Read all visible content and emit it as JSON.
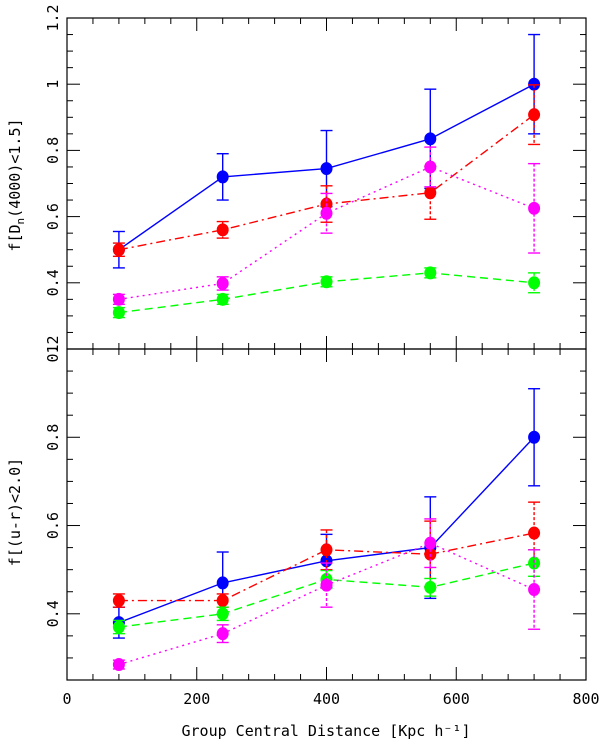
{
  "chart_data": [
    {
      "type": "line",
      "panel": "top",
      "ylabel_main": "f[D",
      "ylabel_sub": "n",
      "ylabel_rest": "(4000)<1.5]",
      "xlim": [
        0,
        800
      ],
      "ylim": [
        0.2,
        1.2
      ],
      "ytick_labels": [
        "0.2",
        "0.4",
        "0.6",
        "0.8",
        "1",
        "1.2"
      ],
      "ytick_values": [
        0.2,
        0.4,
        0.6,
        0.8,
        1.0,
        1.2
      ],
      "x": [
        80,
        240,
        400,
        560,
        720
      ],
      "series": [
        {
          "name": "blue",
          "color": "#0000ff",
          "dash": "solid",
          "values": [
            0.5,
            0.72,
            0.745,
            0.835,
            1.0
          ],
          "err": [
            0.055,
            0.07,
            0.115,
            0.15,
            0.15
          ]
        },
        {
          "name": "red",
          "color": "#ff0000",
          "dash": "dashdot",
          "values": [
            0.5,
            0.56,
            0.638,
            0.672,
            0.908
          ],
          "err": [
            0.02,
            0.025,
            0.055,
            0.08,
            0.09
          ]
        },
        {
          "name": "magenta",
          "color": "#ff00ff",
          "dash": "dotted",
          "values": [
            0.35,
            0.398,
            0.61,
            0.75,
            0.625
          ],
          "err": [
            0.015,
            0.02,
            0.06,
            0.06,
            0.135
          ]
        },
        {
          "name": "green",
          "color": "#00ff00",
          "dash": "dashed",
          "values": [
            0.31,
            0.35,
            0.403,
            0.43,
            0.4
          ],
          "err": [
            0.015,
            0.015,
            0.015,
            0.015,
            0.03
          ]
        }
      ]
    },
    {
      "type": "line",
      "panel": "bottom",
      "ylabel": "f[(u-r)<2.0]",
      "xlabel": "Group Central Distance [Kpc h⁻¹]",
      "xlim": [
        0,
        800
      ],
      "ylim": [
        0.25,
        1.0
      ],
      "ytick_labels": [
        "0.4",
        "0.6",
        "0.8",
        "1"
      ],
      "ytick_values": [
        0.4,
        0.6,
        0.8,
        1.0
      ],
      "xtick_labels": [
        "0",
        "200",
        "400",
        "600",
        "800"
      ],
      "xtick_values": [
        0,
        200,
        400,
        600,
        800
      ],
      "x": [
        80,
        240,
        400,
        560,
        720
      ],
      "series": [
        {
          "name": "blue",
          "color": "#0000ff",
          "dash": "solid",
          "values": [
            0.38,
            0.47,
            0.52,
            0.55,
            0.8
          ],
          "err": [
            0.035,
            0.07,
            0.06,
            0.115,
            0.11
          ]
        },
        {
          "name": "red",
          "color": "#ff0000",
          "dash": "dashdot",
          "values": [
            0.43,
            0.43,
            0.545,
            0.535,
            0.583
          ],
          "err": [
            0.015,
            0.015,
            0.045,
            0.075,
            0.07
          ]
        },
        {
          "name": "green",
          "color": "#00ff00",
          "dash": "dashed",
          "values": [
            0.37,
            0.4,
            0.478,
            0.46,
            0.515
          ],
          "err": [
            0.015,
            0.015,
            0.02,
            0.02,
            0.03
          ]
        },
        {
          "name": "magenta",
          "color": "#ff00ff",
          "dash": "dotted",
          "values": [
            0.285,
            0.355,
            0.465,
            0.56,
            0.455
          ],
          "err": [
            0.01,
            0.02,
            0.05,
            0.055,
            0.09
          ]
        }
      ]
    }
  ]
}
